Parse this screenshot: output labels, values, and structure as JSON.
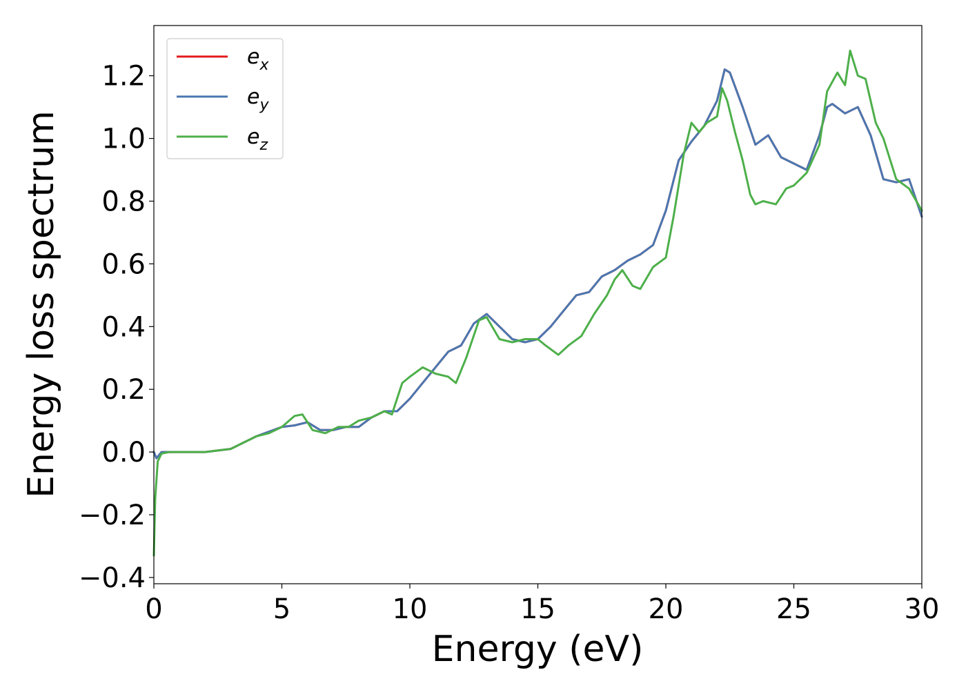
{
  "chart_data": {
    "type": "line",
    "title": "",
    "xlabel": "Energy (eV)",
    "ylabel": "Energy loss spectrum",
    "xlim": [
      0,
      30
    ],
    "ylim": [
      -0.42,
      1.36
    ],
    "xticks": [
      0,
      5,
      10,
      15,
      20,
      25,
      30
    ],
    "yticks": [
      -0.4,
      -0.2,
      0.0,
      0.2,
      0.4,
      0.6,
      0.8,
      1.0,
      1.2
    ],
    "ytick_labels": [
      "−0.4",
      "−0.2",
      "0.0",
      "0.2",
      "0.4",
      "0.6",
      "0.8",
      "1.0",
      "1.2"
    ],
    "grid": false,
    "legend_position": "top-left",
    "series": [
      {
        "name": "e_x",
        "legend_base": "e",
        "legend_sub": "x",
        "color": "#e41a1c",
        "x": [
          0,
          0.1,
          0.3,
          0.6,
          1,
          2,
          3,
          4,
          5,
          5.5,
          6,
          6.5,
          7,
          7.5,
          8,
          8.5,
          9,
          9.5,
          10,
          10.5,
          11,
          11.5,
          12,
          12.5,
          13,
          13.5,
          14,
          14.5,
          15,
          15.5,
          16,
          16.5,
          17,
          17.5,
          18,
          18.5,
          19,
          19.5,
          20,
          20.5,
          21,
          21.5,
          22,
          22.3,
          22.5,
          23,
          23.5,
          24,
          24.5,
          25,
          25.5,
          26,
          26.3,
          26.5,
          27,
          27.5,
          28,
          28.5,
          29,
          29.5,
          30
        ],
        "y": [
          0,
          -0.02,
          0.0,
          0.0,
          0.0,
          0.0,
          0.01,
          0.05,
          0.08,
          0.085,
          0.095,
          0.07,
          0.07,
          0.08,
          0.08,
          0.11,
          0.13,
          0.13,
          0.17,
          0.22,
          0.27,
          0.32,
          0.34,
          0.41,
          0.44,
          0.4,
          0.36,
          0.35,
          0.36,
          0.4,
          0.45,
          0.5,
          0.51,
          0.56,
          0.58,
          0.61,
          0.63,
          0.66,
          0.77,
          0.93,
          0.99,
          1.04,
          1.12,
          1.22,
          1.21,
          1.1,
          0.98,
          1.01,
          0.94,
          0.92,
          0.9,
          1.01,
          1.1,
          1.11,
          1.08,
          1.1,
          1.01,
          0.87,
          0.86,
          0.87,
          0.75
        ]
      },
      {
        "name": "e_y",
        "legend_base": "e",
        "legend_sub": "y",
        "color": "#4a77b0",
        "x": [
          0,
          0.1,
          0.3,
          0.6,
          1,
          2,
          3,
          4,
          5,
          5.5,
          6,
          6.5,
          7,
          7.5,
          8,
          8.5,
          9,
          9.5,
          10,
          10.5,
          11,
          11.5,
          12,
          12.5,
          13,
          13.5,
          14,
          14.5,
          15,
          15.5,
          16,
          16.5,
          17,
          17.5,
          18,
          18.5,
          19,
          19.5,
          20,
          20.5,
          21,
          21.5,
          22,
          22.3,
          22.5,
          23,
          23.5,
          24,
          24.5,
          25,
          25.5,
          26,
          26.3,
          26.5,
          27,
          27.5,
          28,
          28.5,
          29,
          29.5,
          30
        ],
        "y": [
          0,
          -0.02,
          0.0,
          0.0,
          0.0,
          0.0,
          0.01,
          0.05,
          0.08,
          0.085,
          0.095,
          0.07,
          0.07,
          0.08,
          0.08,
          0.11,
          0.13,
          0.13,
          0.17,
          0.22,
          0.27,
          0.32,
          0.34,
          0.41,
          0.44,
          0.4,
          0.36,
          0.35,
          0.36,
          0.4,
          0.45,
          0.5,
          0.51,
          0.56,
          0.58,
          0.61,
          0.63,
          0.66,
          0.77,
          0.93,
          0.99,
          1.04,
          1.12,
          1.22,
          1.21,
          1.1,
          0.98,
          1.01,
          0.94,
          0.92,
          0.9,
          1.01,
          1.1,
          1.11,
          1.08,
          1.1,
          1.01,
          0.87,
          0.86,
          0.87,
          0.75
        ]
      },
      {
        "name": "e_z",
        "legend_base": "e",
        "legend_sub": "z",
        "color": "#4daf4a",
        "x": [
          0,
          0.05,
          0.15,
          0.3,
          0.6,
          1,
          2,
          3,
          3.5,
          4,
          4.5,
          5,
          5.5,
          5.8,
          6.2,
          6.7,
          7.2,
          7.6,
          8,
          8.5,
          9,
          9.3,
          9.7,
          10,
          10.5,
          11,
          11.5,
          11.8,
          12.2,
          12.7,
          13,
          13.5,
          14,
          14.5,
          15,
          15.3,
          15.8,
          16.2,
          16.7,
          17.2,
          17.7,
          18,
          18.3,
          18.7,
          19,
          19.5,
          20,
          20.3,
          20.7,
          21,
          21.3,
          21.6,
          22,
          22.2,
          22.4,
          22.7,
          23,
          23.3,
          23.5,
          23.8,
          24.3,
          24.7,
          25,
          25.5,
          26,
          26.3,
          26.7,
          27,
          27.2,
          27.5,
          27.8,
          28.2,
          28.5,
          29,
          29.5,
          30
        ],
        "y": [
          -0.33,
          -0.15,
          -0.03,
          -0.005,
          0.0,
          0.0,
          0.0,
          0.01,
          0.03,
          0.05,
          0.06,
          0.08,
          0.115,
          0.12,
          0.07,
          0.06,
          0.08,
          0.08,
          0.1,
          0.11,
          0.13,
          0.12,
          0.22,
          0.24,
          0.27,
          0.25,
          0.24,
          0.22,
          0.3,
          0.42,
          0.43,
          0.36,
          0.35,
          0.36,
          0.36,
          0.34,
          0.31,
          0.34,
          0.37,
          0.44,
          0.5,
          0.55,
          0.58,
          0.53,
          0.52,
          0.59,
          0.62,
          0.75,
          0.95,
          1.05,
          1.02,
          1.05,
          1.07,
          1.16,
          1.12,
          1.02,
          0.93,
          0.82,
          0.79,
          0.8,
          0.79,
          0.84,
          0.85,
          0.89,
          0.98,
          1.15,
          1.21,
          1.17,
          1.28,
          1.2,
          1.19,
          1.05,
          1.0,
          0.87,
          0.84,
          0.77
        ]
      }
    ]
  }
}
